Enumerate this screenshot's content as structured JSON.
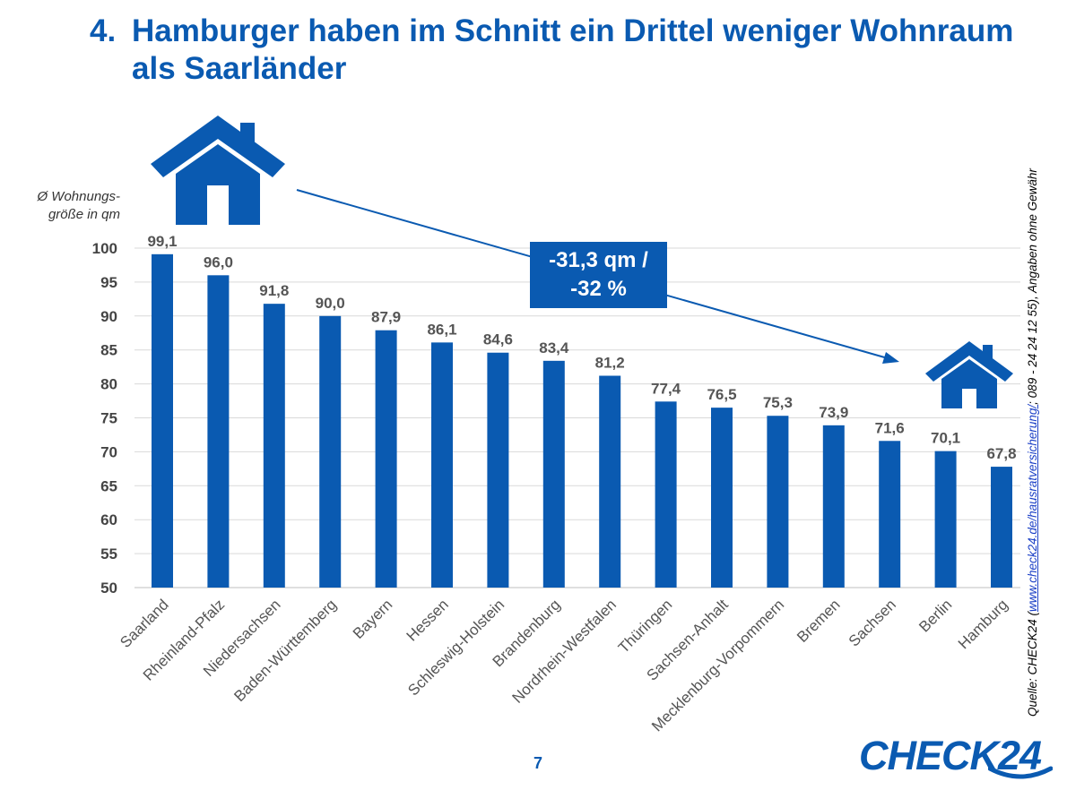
{
  "title": {
    "number": "4.",
    "text": "Hamburger haben im Schnitt ein Drittel weniger Wohnraum als Saarländer"
  },
  "callout": {
    "line1": "-31,3 qm /",
    "line2": "-32 %"
  },
  "source": {
    "prefix": "Quelle: CHECK24 (",
    "link": "www.check24.de/hausratversicherung/",
    "suffix": "; 089 - 24 24 12 55), Angaben ohne Gewähr"
  },
  "page_number": "7",
  "logo": "CHECK24",
  "colors": {
    "bar": "#0a5ab1",
    "title": "#0a5ab1",
    "grid": "#d9d9d9"
  },
  "icons": [
    "house-icon-large",
    "house-icon-small",
    "arrow-icon"
  ],
  "chart_data": {
    "type": "bar",
    "ylabel": "Ø Wohnungs-größe in qm",
    "ylim": [
      50,
      100
    ],
    "yticks": [
      100,
      95,
      90,
      85,
      80,
      75,
      70,
      65,
      60,
      55,
      50
    ],
    "grid": true,
    "categories": [
      "Saarland",
      "Rheinland-Pfalz",
      "Niedersachsen",
      "Baden-Württemberg",
      "Bayern",
      "Hessen",
      "Schleswig-Holstein",
      "Brandenburg",
      "Nordrhein-Westfalen",
      "Thüringen",
      "Sachsen-Anhalt",
      "Mecklenburg-Vorpommern",
      "Bremen",
      "Sachsen",
      "Berlin",
      "Hamburg"
    ],
    "values": [
      99.1,
      96.0,
      91.8,
      90.0,
      87.9,
      86.1,
      84.6,
      83.4,
      81.2,
      77.4,
      76.5,
      75.3,
      73.9,
      71.6,
      70.1,
      67.8
    ],
    "value_labels": [
      "99,1",
      "96,0",
      "91,8",
      "90,0",
      "87,9",
      "86,1",
      "84,6",
      "83,4",
      "81,2",
      "77,4",
      "76,5",
      "75,3",
      "73,9",
      "71,6",
      "70,1",
      "67,8"
    ]
  }
}
